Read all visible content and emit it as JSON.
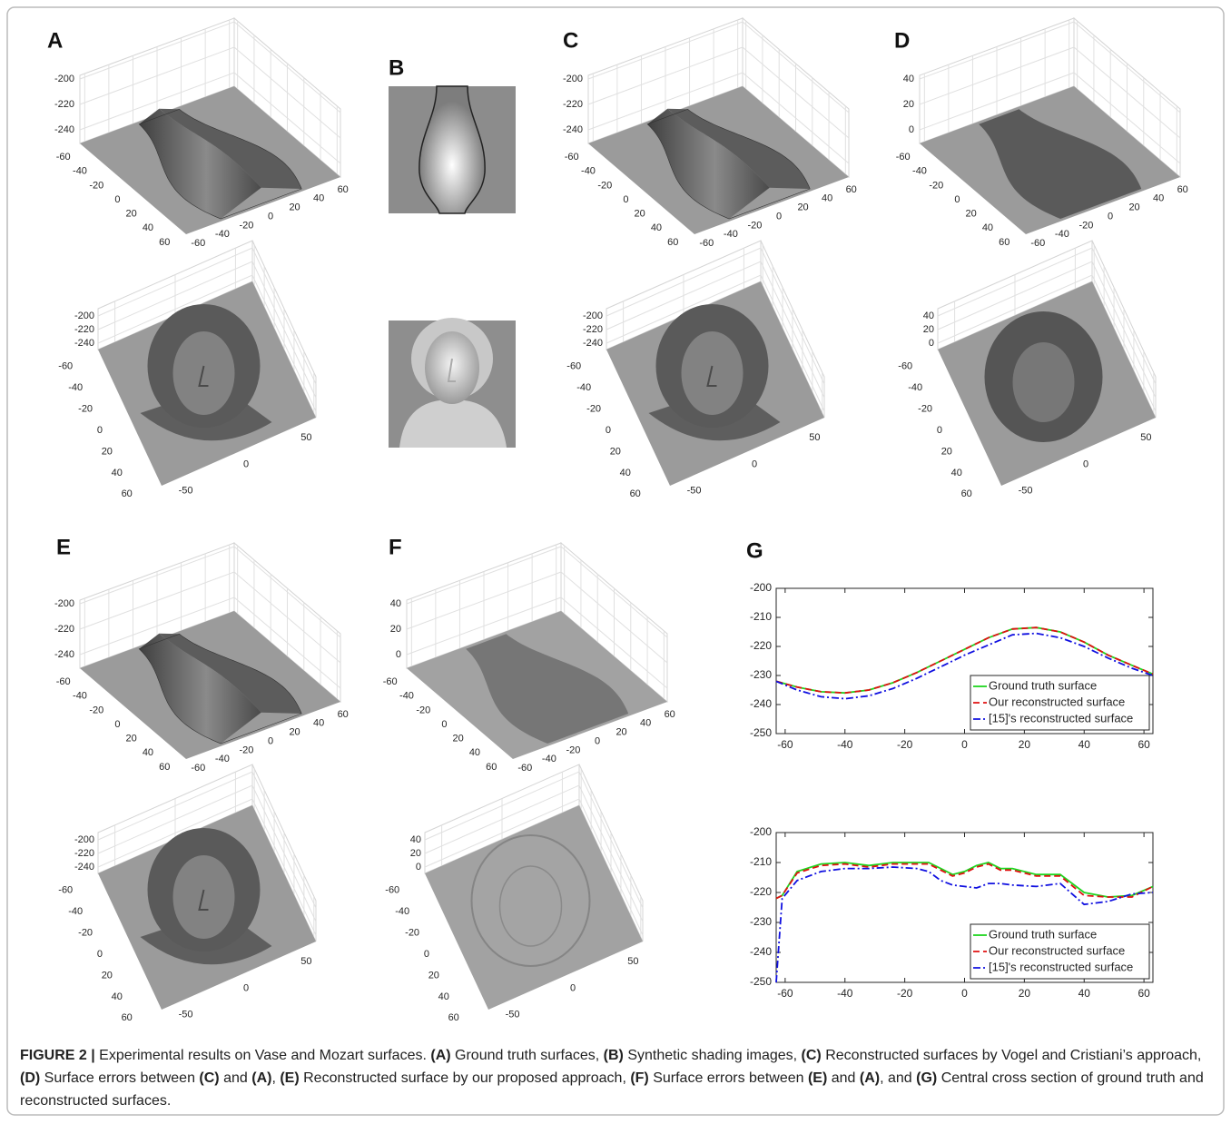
{
  "panels": [
    {
      "label": "A",
      "surfaces": [
        {
          "zticks": [
            -200,
            -220,
            -240
          ],
          "yticks": [
            -60,
            -40,
            -20,
            0,
            20,
            40,
            60
          ],
          "xticks": [
            -60,
            -40,
            -20,
            0,
            20,
            40,
            60
          ]
        },
        {
          "zticks": [
            -200,
            -220,
            -240
          ],
          "yticks": [
            -60,
            -40,
            -20,
            0,
            20,
            40,
            60
          ],
          "xticks": [
            -50,
            0,
            50
          ]
        }
      ]
    },
    {
      "label": "B"
    },
    {
      "label": "C",
      "surfaces": [
        {
          "zticks": [
            -200,
            -220,
            -240
          ],
          "yticks": [
            -60,
            -40,
            -20,
            0,
            20,
            40,
            60
          ],
          "xticks": [
            -60,
            -40,
            -20,
            0,
            20,
            40,
            60
          ]
        },
        {
          "zticks": [
            -200,
            -220,
            -240
          ],
          "yticks": [
            -60,
            -40,
            -20,
            0,
            20,
            40,
            60
          ],
          "xticks": [
            -50,
            0,
            50
          ]
        }
      ]
    },
    {
      "label": "D",
      "surfaces": [
        {
          "zticks": [
            40,
            20,
            0
          ],
          "yticks": [
            -60,
            -40,
            -20,
            0,
            20,
            40,
            60
          ],
          "xticks": [
            -60,
            -40,
            -20,
            0,
            20,
            40,
            60
          ]
        },
        {
          "zticks": [
            40,
            20,
            0
          ],
          "yticks": [
            -60,
            -40,
            -20,
            0,
            20,
            40,
            60
          ],
          "xticks": [
            -50,
            0,
            50
          ]
        }
      ]
    },
    {
      "label": "E",
      "surfaces": [
        {
          "zticks": [
            -200,
            -220,
            -240
          ],
          "yticks": [
            -60,
            -40,
            -20,
            0,
            20,
            40,
            60
          ],
          "xticks": [
            -60,
            -40,
            -20,
            0,
            20,
            40,
            60
          ]
        },
        {
          "zticks": [
            -200,
            -220,
            -240
          ],
          "yticks": [
            -60,
            -40,
            -20,
            0,
            20,
            40,
            60
          ],
          "xticks": [
            -50,
            0,
            50
          ]
        }
      ]
    },
    {
      "label": "F",
      "surfaces": [
        {
          "zticks": [
            40,
            20,
            0
          ],
          "yticks": [
            -60,
            -40,
            -20,
            0,
            20,
            40,
            60
          ],
          "xticks": [
            -60,
            -40,
            -20,
            0,
            20,
            40,
            60
          ]
        },
        {
          "zticks": [
            40,
            20,
            0
          ],
          "yticks": [
            -60,
            -40,
            -20,
            0,
            20,
            40,
            60
          ],
          "xticks": [
            -50,
            0,
            50
          ]
        }
      ]
    },
    {
      "label": "G"
    }
  ],
  "chart_data": [
    {
      "type": "line",
      "legend": "lower right",
      "x": [
        -63,
        -56,
        -48,
        -40,
        -32,
        -24,
        -16,
        -8,
        0,
        8,
        16,
        24,
        32,
        40,
        48,
        56,
        63
      ],
      "series": [
        {
          "name": "Ground truth surface",
          "color": "#1fd51f",
          "linestyle": "-",
          "values": [
            -232,
            -234,
            -235.6,
            -236,
            -235,
            -232.5,
            -229,
            -225,
            -221,
            -217,
            -214,
            -213.5,
            -215,
            -218.5,
            -223,
            -226.5,
            -229.5
          ]
        },
        {
          "name": "Our reconstructed surface",
          "color": "#e01010",
          "linestyle": "--",
          "values": [
            -232,
            -234,
            -235.6,
            -236,
            -235,
            -232.5,
            -229,
            -225,
            -221,
            -217,
            -214,
            -213.5,
            -215,
            -218.5,
            -223,
            -226.5,
            -229.5
          ]
        },
        {
          "name": "[15]'s reconstructed surface",
          "color": "#1010e0",
          "linestyle": "-.",
          "values": [
            -232,
            -235,
            -237.3,
            -238,
            -237,
            -234.5,
            -231,
            -227,
            -223,
            -219.5,
            -216,
            -215.5,
            -217,
            -220,
            -224,
            -227.5,
            -230
          ]
        }
      ],
      "xlim": [
        -63,
        63
      ],
      "xticks": [
        -60,
        -40,
        -20,
        0,
        20,
        40,
        60
      ],
      "ylim": [
        -250,
        -200
      ],
      "yticks": [
        -200,
        -210,
        -220,
        -230,
        -240,
        -250
      ]
    },
    {
      "type": "line",
      "legend": "lower right",
      "x": [
        -63,
        -61,
        -56,
        -48,
        -40,
        -32,
        -24,
        -16,
        -12,
        -8,
        -4,
        0,
        4,
        8,
        12,
        16,
        24,
        32,
        40,
        48,
        56,
        63
      ],
      "series": [
        {
          "name": "Ground truth surface",
          "color": "#1fd51f",
          "linestyle": "-",
          "values": [
            -222,
            -221,
            -213,
            -210.5,
            -210,
            -211,
            -210,
            -210,
            -210,
            -212,
            -214,
            -213,
            -211,
            -210,
            -212,
            -212,
            -214,
            -214,
            -220,
            -221.5,
            -221,
            -218
          ]
        },
        {
          "name": "Our reconstructed surface",
          "color": "#e01010",
          "linestyle": "--",
          "values": [
            -222,
            -221,
            -213.5,
            -211,
            -210.5,
            -211.5,
            -210.5,
            -210.5,
            -210.5,
            -212.5,
            -214.5,
            -213.5,
            -211.5,
            -210.5,
            -212.5,
            -212.5,
            -214.5,
            -214.5,
            -221,
            -221.5,
            -221.5,
            -218
          ]
        },
        {
          "name": "[15]'s reconstructed surface",
          "color": "#1010e0",
          "linestyle": "-.",
          "values": [
            -250,
            -222,
            -216,
            -213,
            -212,
            -212,
            -211.5,
            -212,
            -213,
            -216,
            -217.5,
            -218,
            -218.5,
            -217,
            -217,
            -217.5,
            -218,
            -217,
            -224,
            -223,
            -220.5,
            -220
          ]
        }
      ],
      "xlim": [
        -63,
        63
      ],
      "xticks": [
        -60,
        -40,
        -20,
        0,
        20,
        40,
        60
      ],
      "ylim": [
        -250,
        -200
      ],
      "yticks": [
        -200,
        -210,
        -220,
        -230,
        -240,
        -250
      ]
    }
  ],
  "caption": [
    {
      "text": "FIGURE 2 | ",
      "bold": true
    },
    {
      "text": "Experimental results on Vase and Mozart surfaces. "
    },
    {
      "text": "(A)",
      "bold": true
    },
    {
      "text": " Ground truth surfaces, "
    },
    {
      "text": "(B)",
      "bold": true
    },
    {
      "text": " Synthetic shading images, "
    },
    {
      "text": "(C)",
      "bold": true
    },
    {
      "text": " Reconstructed surfaces by Vogel and Cristiani’s approach, "
    },
    {
      "text": "(D)",
      "bold": true
    },
    {
      "text": " Surface errors between "
    },
    {
      "text": "(C)",
      "bold": true
    },
    {
      "text": " and "
    },
    {
      "text": "(A)",
      "bold": true
    },
    {
      "text": ", "
    },
    {
      "text": "(E)",
      "bold": true
    },
    {
      "text": " Reconstructed surface by our proposed approach, "
    },
    {
      "text": "(F)",
      "bold": true
    },
    {
      "text": " Surface errors between "
    },
    {
      "text": "(E)",
      "bold": true
    },
    {
      "text": " and "
    },
    {
      "text": "(A)",
      "bold": true
    },
    {
      "text": ", and "
    },
    {
      "text": "(G)",
      "bold": true
    },
    {
      "text": " Central cross section of ground truth and reconstructed surfaces."
    }
  ]
}
